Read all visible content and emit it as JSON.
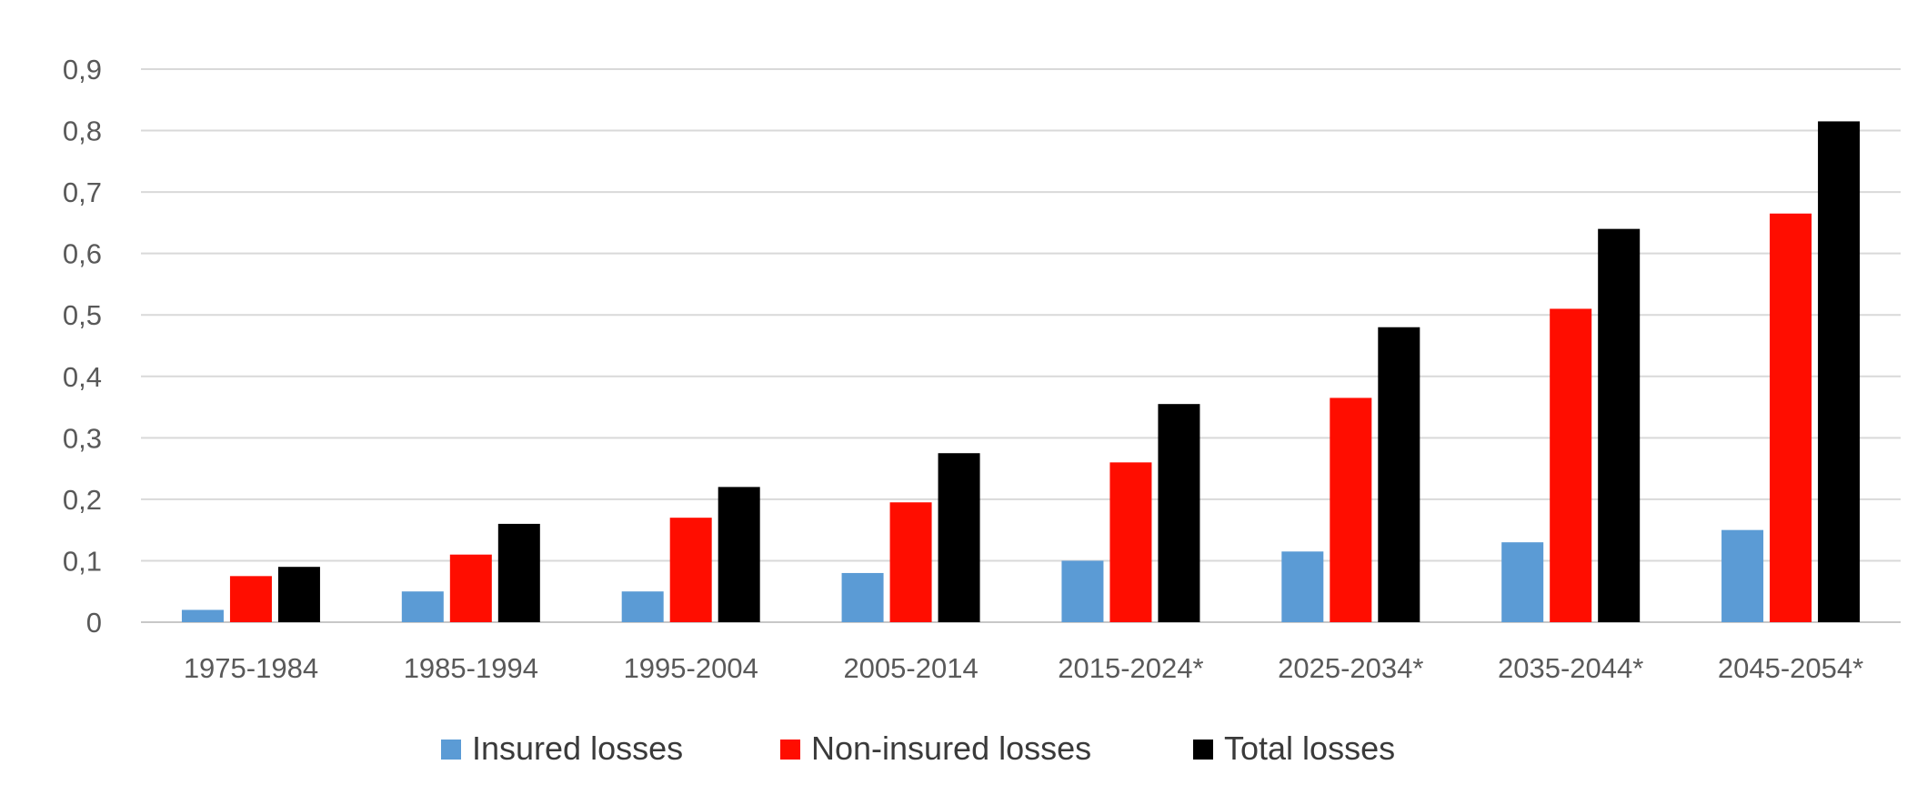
{
  "chart_data": {
    "type": "bar",
    "categories": [
      "1975-1984",
      "1985-1994",
      "1995-2004",
      "2005-2014",
      "2015-2024*",
      "2025-2034*",
      "2035-2044*",
      "2045-2054*"
    ],
    "series": [
      {
        "name": "Insured losses",
        "color": "#5b9bd5",
        "values": [
          0.02,
          0.05,
          0.05,
          0.08,
          0.1,
          0.115,
          0.13,
          0.15
        ]
      },
      {
        "name": "Non-insured losses",
        "color": "#ff0d00",
        "values": [
          0.075,
          0.11,
          0.17,
          0.195,
          0.26,
          0.365,
          0.51,
          0.665
        ]
      },
      {
        "name": "Total losses",
        "color": "#000000",
        "values": [
          0.09,
          0.16,
          0.22,
          0.275,
          0.355,
          0.48,
          0.64,
          0.815
        ]
      }
    ],
    "yticks": [
      "0",
      "0,1",
      "0,2",
      "0,3",
      "0,4",
      "0,5",
      "0,6",
      "0,7",
      "0,8",
      "0,9"
    ],
    "ylim": [
      0,
      0.9
    ],
    "grid": true,
    "legend_position": "bottom"
  }
}
